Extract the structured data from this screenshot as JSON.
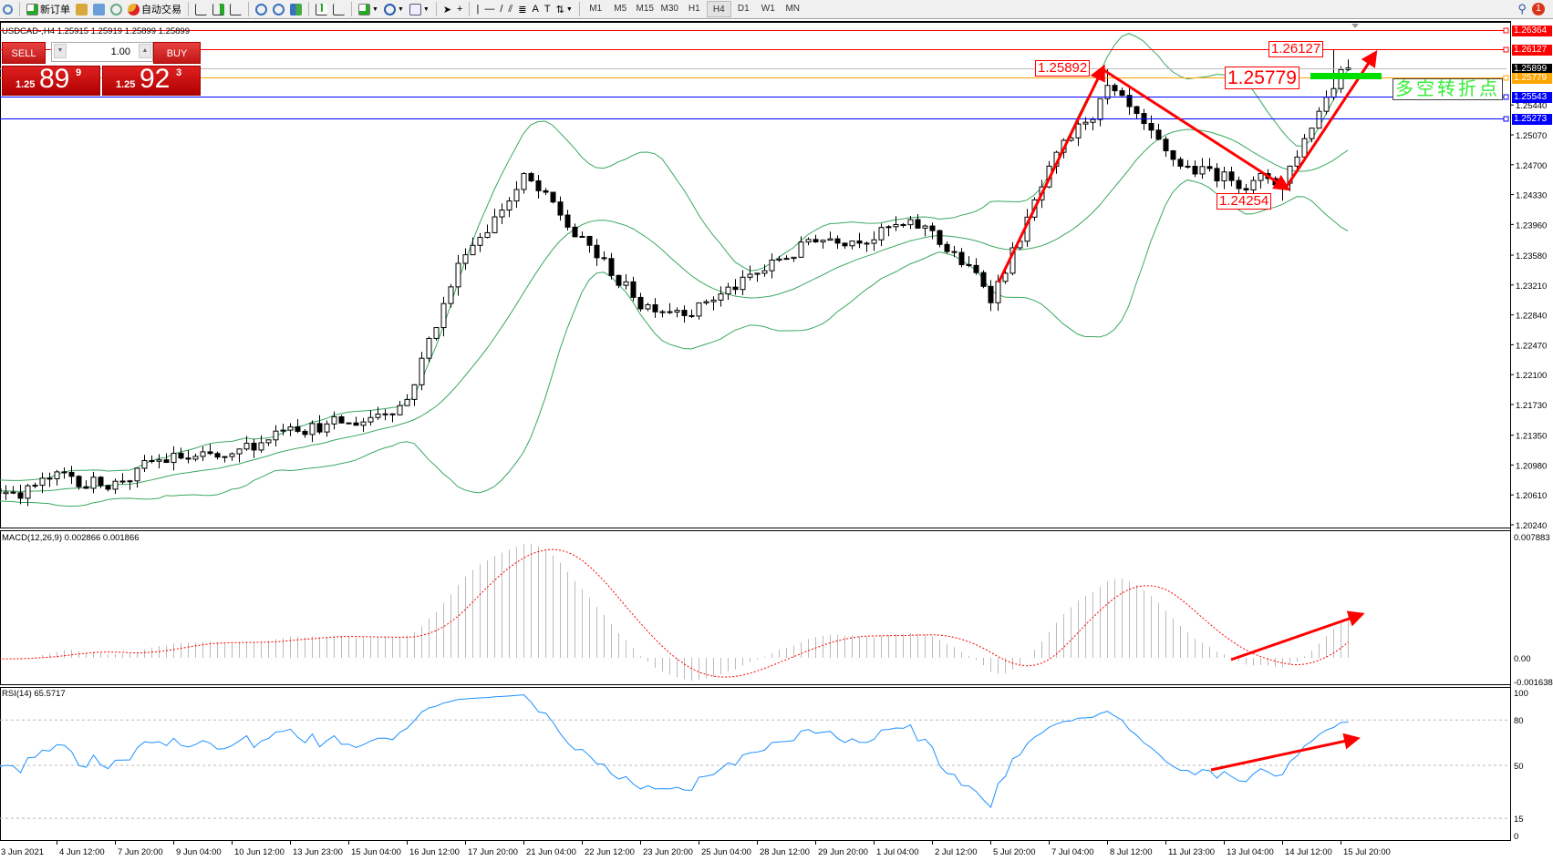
{
  "toolbar": {
    "new_order": "新订单",
    "auto_trading": "自动交易",
    "timeframes": [
      "M1",
      "M5",
      "M15",
      "M30",
      "H1",
      "H4",
      "D1",
      "W1",
      "MN"
    ],
    "active_timeframe": "H4",
    "alert_count": "1"
  },
  "chart_header": "USDCAD-,H4  1.25915 1.25919 1.25899 1.25899",
  "trade_panel": {
    "sell": "SELL",
    "buy": "BUY",
    "lot": "1.00",
    "sell_price": {
      "prefix": "1.25",
      "big": "89",
      "sup": "9"
    },
    "buy_price": {
      "prefix": "1.25",
      "big": "92",
      "sup": "3"
    }
  },
  "chart_data": {
    "type": "candlestick",
    "symbol": "USDCAD-",
    "timeframe": "H4",
    "ylim": [
      1.2024,
      1.26364
    ],
    "price_ticks": [
      "1.25440",
      "1.25070",
      "1.24700",
      "1.24330",
      "1.23960",
      "1.23580",
      "1.23210",
      "1.22840",
      "1.22470",
      "1.22100",
      "1.21730",
      "1.21350",
      "1.20980",
      "1.20610",
      "1.20240"
    ],
    "time_ticks": [
      "3 Jun 2021",
      "4 Jun 12:00",
      "7 Jun 20:00",
      "9 Jun 04:00",
      "10 Jun 12:00",
      "13 Jun 23:00",
      "15 Jun 04:00",
      "16 Jun 12:00",
      "17 Jun 20:00",
      "21 Jun 04:00",
      "22 Jun 12:00",
      "23 Jun 20:00",
      "25 Jun 04:00",
      "28 Jun 12:00",
      "29 Jun 20:00",
      "1 Jul 04:00",
      "2 Jul 12:00",
      "5 Jul 20:00",
      "7 Jul 04:00",
      "8 Jul 12:00",
      "11 Jul 23:00",
      "13 Jul 04:00",
      "14 Jul 12:00",
      "15 Jul 20:00"
    ],
    "price_path": [
      1.2066,
      1.2078,
      1.208,
      1.2105,
      1.2097,
      1.2158,
      1.2145,
      1.2185,
      1.2366,
      1.2452,
      1.2372,
      1.23,
      1.23,
      1.233,
      1.238,
      1.2392,
      1.2385,
      1.231,
      1.2455,
      1.256,
      1.247,
      1.2455,
      1.245,
      1.2595
    ],
    "last_price": 1.25899,
    "bollinger_bands": true,
    "horizontal_lines": [
      {
        "price": "1.26364",
        "color": "#ff0000"
      },
      {
        "price": "1.26127",
        "color": "#ff0000"
      },
      {
        "price": "1.25899",
        "color": "#000000"
      },
      {
        "price": "1.25779",
        "color": "#ffa500"
      },
      {
        "price": "1.25543",
        "color": "#0000ff"
      },
      {
        "price": "1.25273",
        "color": "#0000ff"
      }
    ],
    "annotations": {
      "peak": "1.25892",
      "trough": "1.24254",
      "high": "1.26127",
      "pivot_price": "1.25779",
      "pivot_text": "多空转折点"
    },
    "macd": {
      "label": "MACD(12,26,9) 0.002866 0.001866",
      "ticks": [
        "0.007883",
        "0.00",
        "-0.001638"
      ],
      "ylim": [
        -0.001638,
        0.007883
      ]
    },
    "rsi": {
      "label": "RSI(14) 65.5717",
      "ticks": [
        "100",
        "80",
        "50",
        "15",
        "0"
      ],
      "levels": [
        80,
        50,
        15
      ]
    }
  }
}
